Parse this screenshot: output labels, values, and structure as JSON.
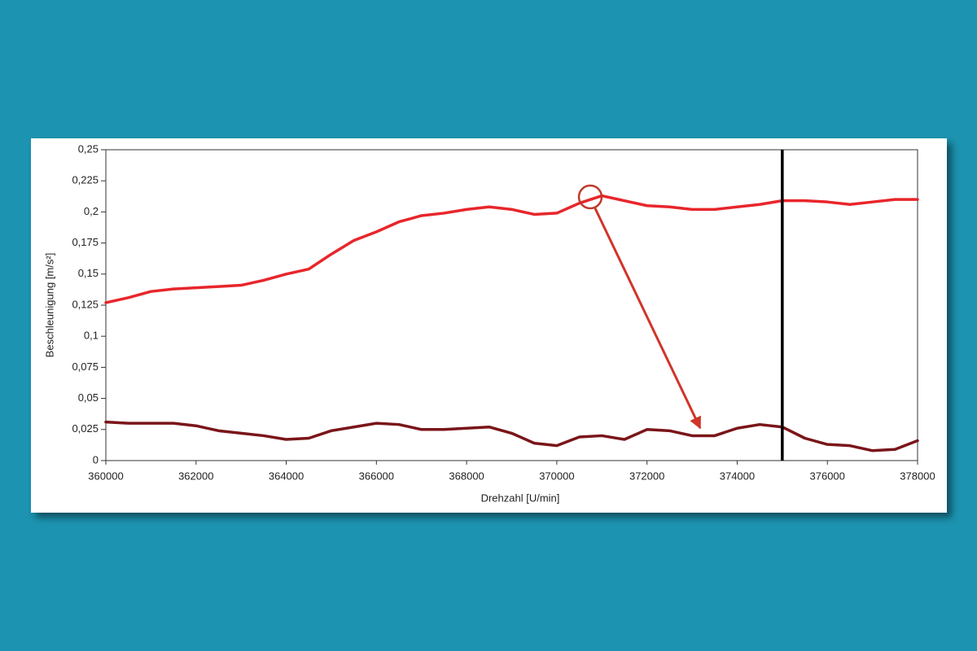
{
  "chart_data": {
    "type": "line",
    "xlabel": "Drehzahl [U/min]",
    "ylabel": "Beschleunigung [m/s²]",
    "x": [
      360000,
      360500,
      361000,
      361500,
      362000,
      362500,
      363000,
      363500,
      364000,
      364500,
      365000,
      365500,
      366000,
      366500,
      367000,
      367500,
      368000,
      368500,
      369000,
      369500,
      370000,
      370500,
      371000,
      371500,
      372000,
      372500,
      373000,
      373500,
      374000,
      374500,
      375000,
      375500,
      376000,
      376500,
      377000,
      377500,
      378000
    ],
    "series": [
      {
        "color": "#e8262b",
        "values": [
          0.127,
          0.131,
          0.136,
          0.138,
          0.139,
          0.14,
          0.141,
          0.145,
          0.15,
          0.154,
          0.166,
          0.177,
          0.184,
          0.192,
          0.197,
          0.199,
          0.202,
          0.204,
          0.202,
          0.198,
          0.199,
          0.207,
          0.213,
          0.209,
          0.205,
          0.204,
          0.202,
          0.202,
          0.204,
          0.206,
          0.209,
          0.209,
          0.208,
          0.206,
          0.208,
          0.21,
          0.21
        ]
      },
      {
        "color": "#7a1519",
        "values": [
          0.031,
          0.03,
          0.03,
          0.03,
          0.028,
          0.024,
          0.022,
          0.02,
          0.017,
          0.018,
          0.024,
          0.027,
          0.03,
          0.029,
          0.025,
          0.025,
          0.026,
          0.027,
          0.022,
          0.014,
          0.012,
          0.019,
          0.02,
          0.017,
          0.025,
          0.024,
          0.02,
          0.02,
          0.026,
          0.029,
          0.027,
          0.018,
          0.013,
          0.012,
          0.008,
          0.009,
          0.016
        ]
      }
    ],
    "cursor_x": 375000,
    "xlim": [
      360000,
      378000
    ],
    "xticks": [
      360000,
      362000,
      364000,
      366000,
      368000,
      370000,
      372000,
      374000,
      376000,
      378000
    ],
    "ylim": [
      0,
      0.25
    ],
    "yticks": [
      0,
      {
        "value": 0.025,
        "label": "0,025"
      },
      {
        "value": 0.05,
        "label": "0,05"
      },
      {
        "value": 0.075,
        "label": "0,075"
      },
      {
        "value": 0.1,
        "label": "0,1"
      },
      {
        "value": 0.125,
        "label": "0,125"
      },
      {
        "value": 0.15,
        "label": "0,15"
      },
      {
        "value": 0.175,
        "label": "0,175"
      },
      {
        "value": 0.2,
        "label": "0,2"
      },
      {
        "value": 0.225,
        "label": "0,225"
      },
      {
        "value": 0.25,
        "label": "0,25"
      }
    ],
    "grid": false
  }
}
